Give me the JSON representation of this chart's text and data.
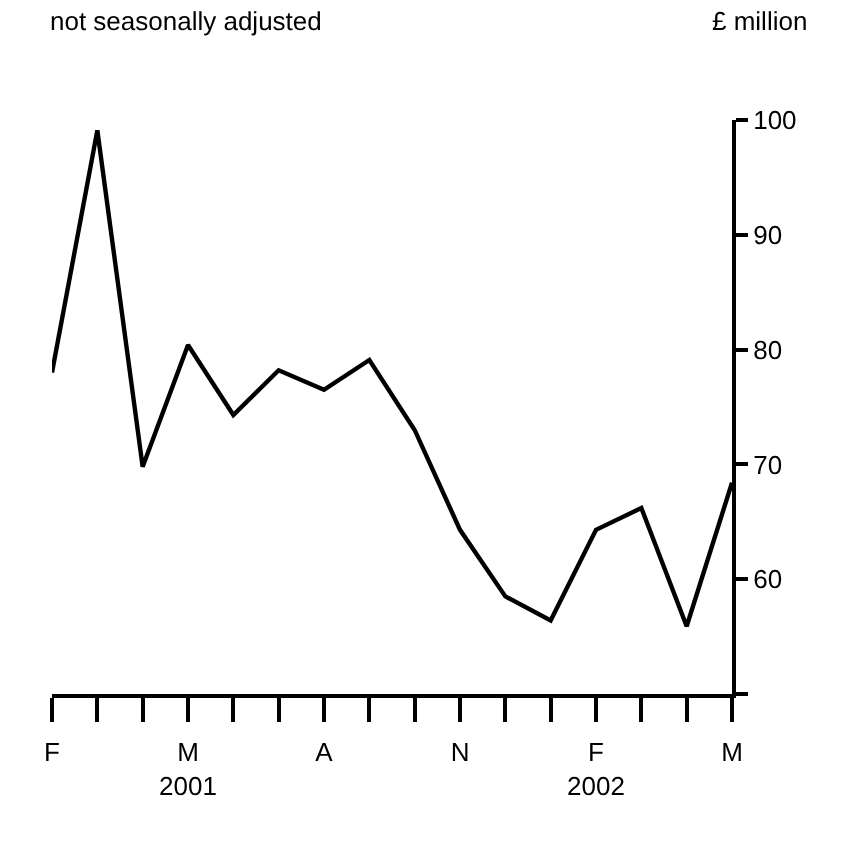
{
  "chart_data": {
    "type": "line",
    "subtitle": "not seasonally adjusted",
    "ylabel": "£ million",
    "categories": [
      "F",
      null,
      null,
      "M\n2001",
      null,
      null,
      "A",
      null,
      null,
      "N",
      null,
      null,
      "F\n2002",
      null,
      null,
      "M"
    ],
    "series": [
      {
        "color": "#000000",
        "values": [
          78.0,
          99.1,
          69.8,
          80.4,
          74.3,
          78.2,
          76.5,
          79.1,
          73.0,
          64.3,
          58.5,
          56.4,
          64.3,
          66.2,
          55.9,
          68.4
        ]
      }
    ],
    "ylim": [
      50,
      100
    ],
    "yticks": [
      {
        "value": 50,
        "label": null
      },
      60,
      70,
      80,
      90,
      100
    ],
    "marker": "none",
    "line_style": "solid"
  }
}
